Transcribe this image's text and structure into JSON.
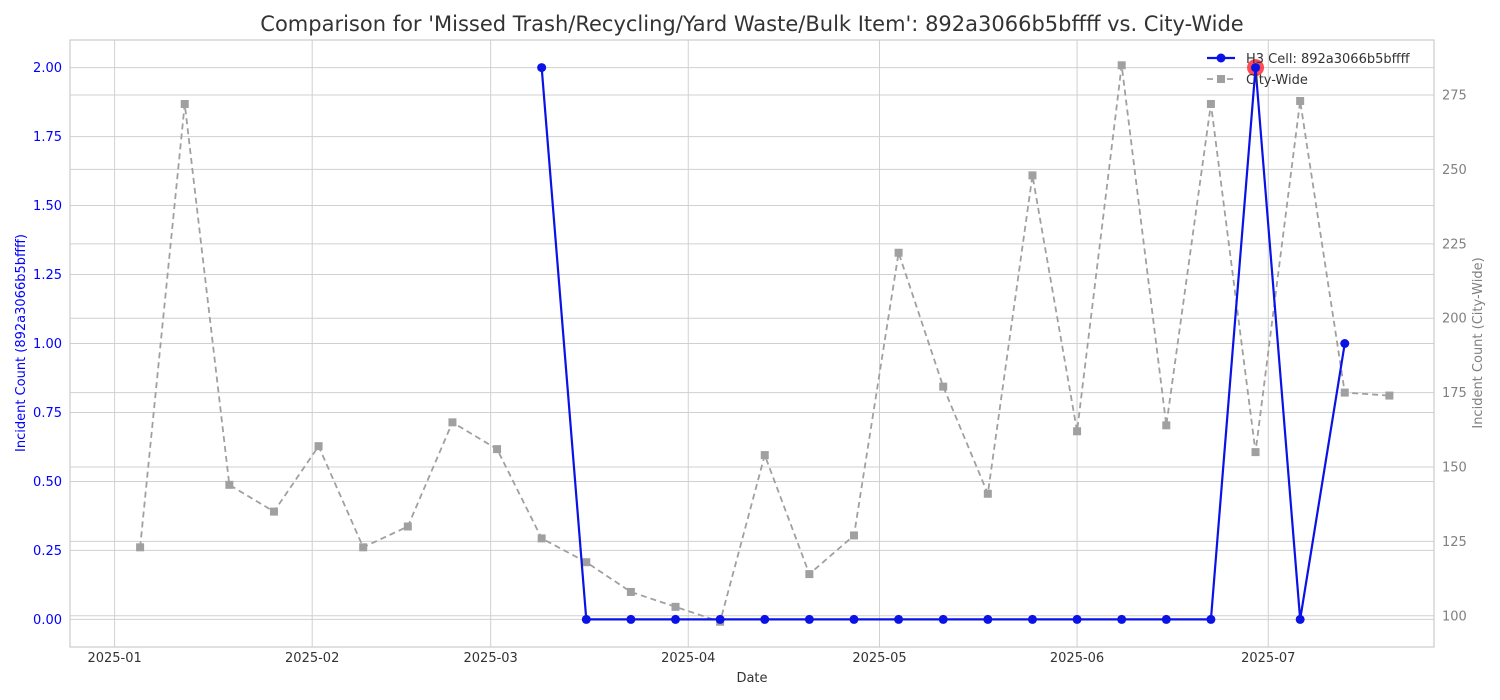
{
  "chart_data": {
    "type": "line",
    "title": "Comparison for 'Missed Trash/Recycling/Yard Waste/Bulk Item': 892a3066b5bffff vs. City-Wide",
    "xlabel": "Date",
    "ylabel_left": "Incident Count (892a3066b5bffff)",
    "ylabel_right": "Incident Count (City-Wide)",
    "x_ticks": [
      "2025-01",
      "2025-02",
      "2025-03",
      "2025-04",
      "2025-05",
      "2025-06",
      "2025-07"
    ],
    "x_tick_dates": [
      "2025-01-01",
      "2025-02-01",
      "2025-03-01",
      "2025-04-01",
      "2025-05-01",
      "2025-06-01",
      "2025-07-01"
    ],
    "xlim": [
      "2024-12-25",
      "2025-07-27"
    ],
    "y_left_ticks": [
      "0.00",
      "0.25",
      "0.50",
      "0.75",
      "1.00",
      "1.25",
      "1.50",
      "1.75",
      "2.00"
    ],
    "y_left_lim": [
      -0.1,
      2.1
    ],
    "y_right_ticks": [
      "100",
      "125",
      "150",
      "175",
      "200",
      "225",
      "250",
      "275"
    ],
    "y_right_lim": [
      89.5,
      293.5
    ],
    "grid": true,
    "legend_position": "top-right",
    "colors": {
      "h3": "#0a12e6",
      "city": "#a0a0a0",
      "highlight": "#ff2a3a",
      "left_axis": "#0000ff",
      "right_axis": "#808080",
      "grid": "#d0d0d0"
    },
    "series": [
      {
        "name": "H3 Cell: 892a3066b5bffff",
        "axis": "left",
        "x": [
          "2025-03-09",
          "2025-03-16",
          "2025-03-23",
          "2025-03-30",
          "2025-04-06",
          "2025-04-13",
          "2025-04-20",
          "2025-04-27",
          "2025-05-04",
          "2025-05-11",
          "2025-05-18",
          "2025-05-25",
          "2025-06-01",
          "2025-06-08",
          "2025-06-15",
          "2025-06-22",
          "2025-06-29",
          "2025-07-06",
          "2025-07-13"
        ],
        "values": [
          2,
          0,
          0,
          0,
          0,
          0,
          0,
          0,
          0,
          0,
          0,
          0,
          0,
          0,
          0,
          0,
          2,
          0,
          1
        ]
      },
      {
        "name": "City-Wide",
        "axis": "right",
        "x": [
          "2025-01-05",
          "2025-01-12",
          "2025-01-19",
          "2025-01-26",
          "2025-02-02",
          "2025-02-09",
          "2025-02-16",
          "2025-02-23",
          "2025-03-02",
          "2025-03-09",
          "2025-03-16",
          "2025-03-23",
          "2025-03-30",
          "2025-04-06",
          "2025-04-13",
          "2025-04-20",
          "2025-04-27",
          "2025-05-04",
          "2025-05-11",
          "2025-05-18",
          "2025-05-25",
          "2025-06-01",
          "2025-06-08",
          "2025-06-15",
          "2025-06-22",
          "2025-06-29",
          "2025-07-06",
          "2025-07-13",
          "2025-07-20"
        ],
        "values": [
          123,
          272,
          144,
          135,
          157,
          123,
          130,
          165,
          156,
          126,
          118,
          108,
          103,
          98,
          154,
          114,
          127,
          222,
          177,
          141,
          248,
          162,
          285,
          164,
          272,
          155,
          273,
          175,
          174
        ]
      }
    ],
    "highlight_point": {
      "series": "H3 Cell: 892a3066b5bffff",
      "x": "2025-06-29",
      "value": 2
    }
  }
}
